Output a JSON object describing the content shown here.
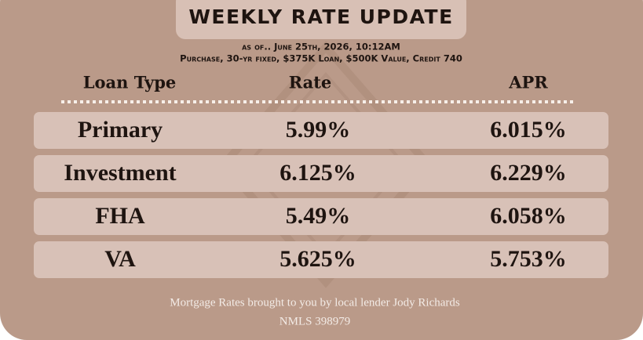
{
  "header": {
    "title": "WEEKLY RATE UPDATE",
    "as_of": "as of.. June 25th, 2026, 10:12AM",
    "details": "Purchase, 30-yr fixed, $375K Loan, $500K Value, Credit 740"
  },
  "table": {
    "columns": [
      "Loan Type",
      "Rate",
      "APR"
    ],
    "rows": [
      [
        "Primary",
        "5.99%",
        "6.015%"
      ],
      [
        "Investment",
        "6.125%",
        "6.229%"
      ],
      [
        "FHA",
        "5.49%",
        "6.058%"
      ],
      [
        "VA",
        "5.625%",
        "5.753%"
      ]
    ]
  },
  "footer": {
    "lines": [
      "Mortgage Rates brought to you by local lender Jody Richards",
      "NMLS 398979"
    ]
  }
}
